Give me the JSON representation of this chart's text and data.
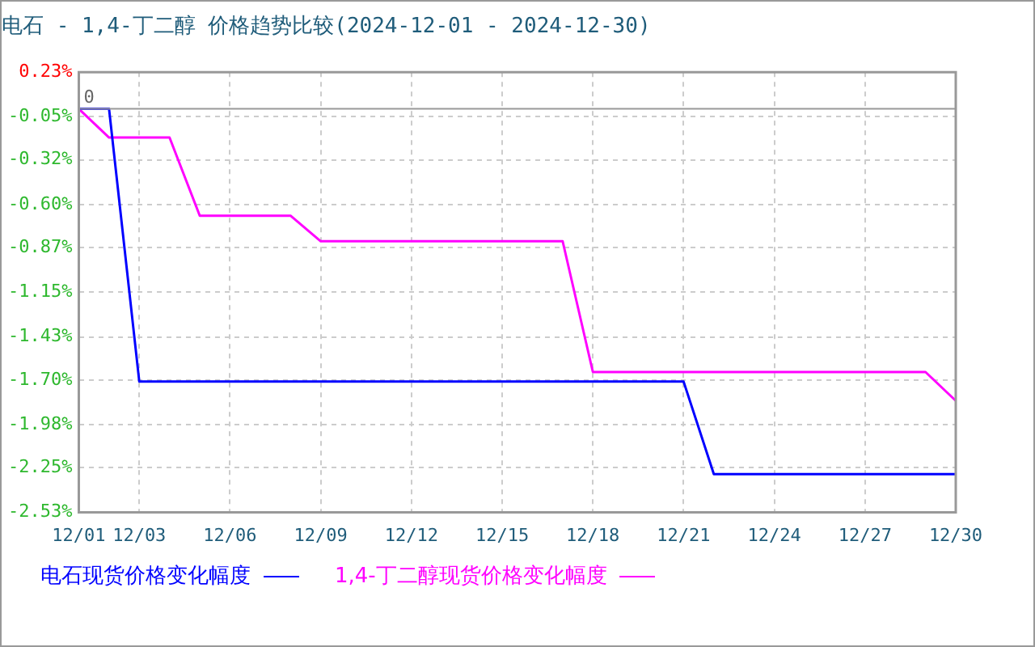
{
  "chart_data": {
    "type": "line",
    "title": "电石 - 1,4-丁二醇 价格趋势比较(2024-12-01 - 2024-12-30)",
    "x": [
      "--12-01",
      "--12-02",
      "--12-03",
      "--12-04",
      "--12-05",
      "--12-06",
      "--12-07",
      "--12-08",
      "--12-09",
      "--12-10",
      "--12-11",
      "--12-12",
      "--12-13",
      "--12-14",
      "--12-15",
      "--12-16",
      "--12-17",
      "--12-18",
      "--12-19",
      "--12-20",
      "--12-21",
      "--12-22",
      "--12-23",
      "--12-24",
      "--12-25",
      "--12-26",
      "--12-27",
      "--12-28",
      "--12-29",
      "--12-30"
    ],
    "series": [
      {
        "name": "电石现货价格变化幅度",
        "color": "#0000ff",
        "values": [
          0,
          0,
          -1.71,
          -1.71,
          -1.71,
          -1.71,
          -1.71,
          -1.71,
          -1.71,
          -1.71,
          -1.71,
          -1.71,
          -1.71,
          -1.71,
          -1.71,
          -1.71,
          -1.71,
          -1.71,
          -1.71,
          -1.71,
          -1.71,
          -2.29,
          -2.29,
          -2.29,
          -2.29,
          -2.29,
          -2.29,
          -2.29,
          -2.29,
          -2.29
        ]
      },
      {
        "name": "1,4-丁二醇现货价格变化幅度",
        "color": "#ff00ff",
        "values": [
          0,
          -0.18,
          -0.18,
          -0.18,
          -0.67,
          -0.67,
          -0.67,
          -0.67,
          -0.83,
          -0.83,
          -0.83,
          -0.83,
          -0.83,
          -0.83,
          -0.83,
          -0.83,
          -0.83,
          -1.65,
          -1.65,
          -1.65,
          -1.65,
          -1.65,
          -1.65,
          -1.65,
          -1.65,
          -1.65,
          -1.65,
          -1.65,
          -1.65,
          -1.83
        ]
      }
    ],
    "xlim": [
      "--12-01",
      "--12-30"
    ],
    "xticks": [
      {
        "value": "--12-01",
        "label": "12/01"
      },
      {
        "value": "--12-03",
        "label": "12/03"
      },
      {
        "value": "--12-06",
        "label": "12/06"
      },
      {
        "value": "--12-09",
        "label": "12/09"
      },
      {
        "value": "--12-12",
        "label": "12/12"
      },
      {
        "value": "--12-15",
        "label": "12/15"
      },
      {
        "value": "--12-18",
        "label": "12/18"
      },
      {
        "value": "--12-21",
        "label": "12/21"
      },
      {
        "value": "--12-24",
        "label": "12/24"
      },
      {
        "value": "--12-27",
        "label": "12/27"
      },
      {
        "value": "--12-30",
        "label": "12/30"
      }
    ],
    "ylim": [
      -2.53,
      0.23
    ],
    "yticks": [
      {
        "value": 0.23,
        "label": "0.23%"
      },
      {
        "value": -0.05,
        "label": "-0.05%"
      },
      {
        "value": -0.32,
        "label": "-0.32%"
      },
      {
        "value": -0.6,
        "label": "-0.60%"
      },
      {
        "value": -0.87,
        "label": "-0.87%"
      },
      {
        "value": -1.15,
        "label": "-1.15%"
      },
      {
        "value": -1.43,
        "label": "-1.43%"
      },
      {
        "value": -1.7,
        "label": "-1.70%"
      },
      {
        "value": -1.98,
        "label": "-1.98%"
      },
      {
        "value": -2.25,
        "label": "-2.25%"
      },
      {
        "value": -2.53,
        "label": "-2.53%"
      }
    ],
    "ref_lines": [
      {
        "axis": "y",
        "value": 0,
        "label": "0",
        "color": "#999999"
      }
    ],
    "grid": true,
    "legend": "bottom",
    "marker": "none",
    "line_style": "solid"
  }
}
